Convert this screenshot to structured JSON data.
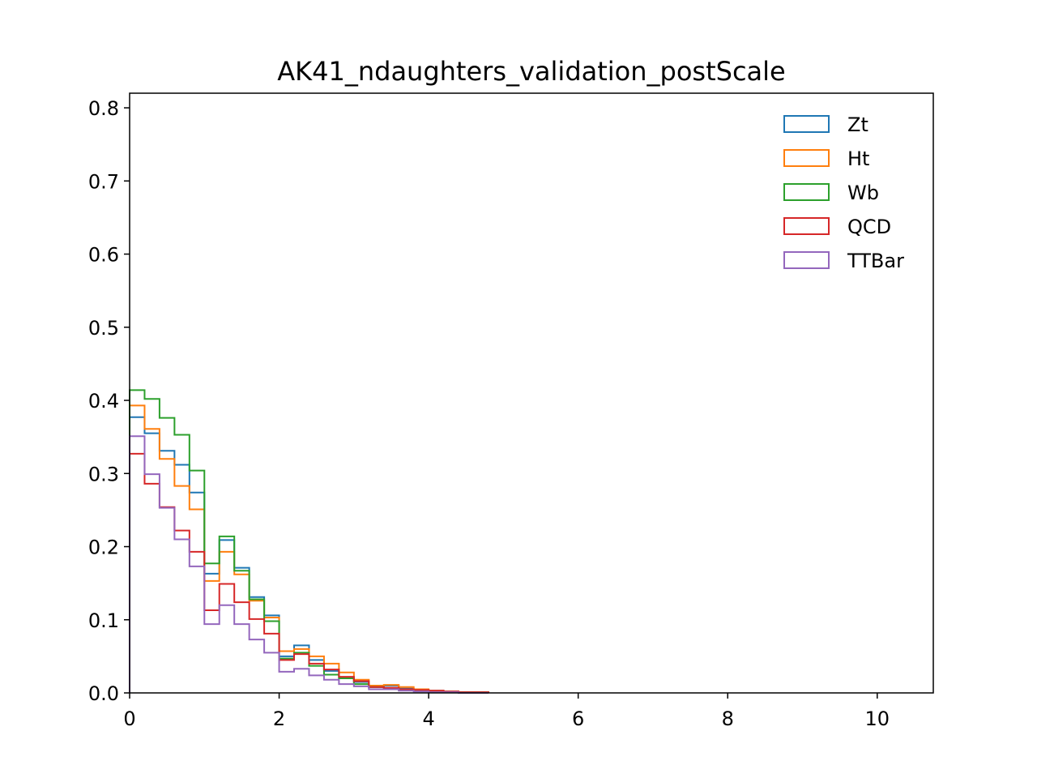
{
  "chart_data": {
    "type": "step-histogram",
    "title": "AK41_ndaughters_validation_postScale",
    "xlabel": "",
    "ylabel": "",
    "xlim": [
      0,
      10.75
    ],
    "ylim": [
      0,
      0.82
    ],
    "grid": false,
    "legend_position": "top-right",
    "x_ticks": [
      {
        "value": 0,
        "label": "0"
      },
      {
        "value": 2,
        "label": "2"
      },
      {
        "value": 4,
        "label": "4"
      },
      {
        "value": 6,
        "label": "6"
      },
      {
        "value": 8,
        "label": "8"
      },
      {
        "value": 10,
        "label": "10"
      }
    ],
    "y_ticks": [
      {
        "value": 0.0,
        "label": "0.0"
      },
      {
        "value": 0.1,
        "label": "0.1"
      },
      {
        "value": 0.2,
        "label": "0.2"
      },
      {
        "value": 0.3,
        "label": "0.3"
      },
      {
        "value": 0.4,
        "label": "0.4"
      },
      {
        "value": 0.5,
        "label": "0.5"
      },
      {
        "value": 0.6,
        "label": "0.6"
      },
      {
        "value": 0.7,
        "label": "0.7"
      },
      {
        "value": 0.8,
        "label": "0.8"
      }
    ],
    "bin_start": 0,
    "bin_width": 0.2,
    "series": [
      {
        "name": "Zt",
        "color": "#1f77b4",
        "values": [
          0.377,
          0.355,
          0.331,
          0.312,
          0.274,
          0.163,
          0.209,
          0.171,
          0.131,
          0.106,
          0.05,
          0.065,
          0.045,
          0.03,
          0.02,
          0.015,
          0.008,
          0.01,
          0.006,
          0.004,
          0.003,
          0.002,
          0.001,
          0.001
        ]
      },
      {
        "name": "Ht",
        "color": "#ff7f0e",
        "values": [
          0.393,
          0.361,
          0.32,
          0.283,
          0.251,
          0.153,
          0.193,
          0.162,
          0.126,
          0.103,
          0.057,
          0.06,
          0.05,
          0.04,
          0.028,
          0.018,
          0.01,
          0.011,
          0.008,
          0.005,
          0.003,
          0.002,
          0.001,
          0.001
        ]
      },
      {
        "name": "Wb",
        "color": "#2ca02c",
        "values": [
          0.414,
          0.402,
          0.376,
          0.353,
          0.304,
          0.177,
          0.214,
          0.167,
          0.128,
          0.098,
          0.047,
          0.055,
          0.037,
          0.025,
          0.02,
          0.012,
          0.008,
          0.006,
          0.004,
          0.003,
          0.002,
          0.001,
          0.001,
          0.001
        ]
      },
      {
        "name": "QCD",
        "color": "#d62728",
        "values": [
          0.327,
          0.286,
          0.254,
          0.222,
          0.193,
          0.113,
          0.149,
          0.124,
          0.101,
          0.081,
          0.045,
          0.053,
          0.04,
          0.032,
          0.022,
          0.016,
          0.008,
          0.007,
          0.005,
          0.004,
          0.003,
          0.002,
          0.001,
          0.001
        ]
      },
      {
        "name": "TTBar",
        "color": "#9467bd",
        "values": [
          0.351,
          0.299,
          0.253,
          0.21,
          0.173,
          0.094,
          0.12,
          0.094,
          0.073,
          0.055,
          0.029,
          0.033,
          0.024,
          0.018,
          0.012,
          0.009,
          0.005,
          0.005,
          0.003,
          0.002,
          0.001,
          0.001,
          0.0,
          0.0
        ]
      }
    ]
  }
}
